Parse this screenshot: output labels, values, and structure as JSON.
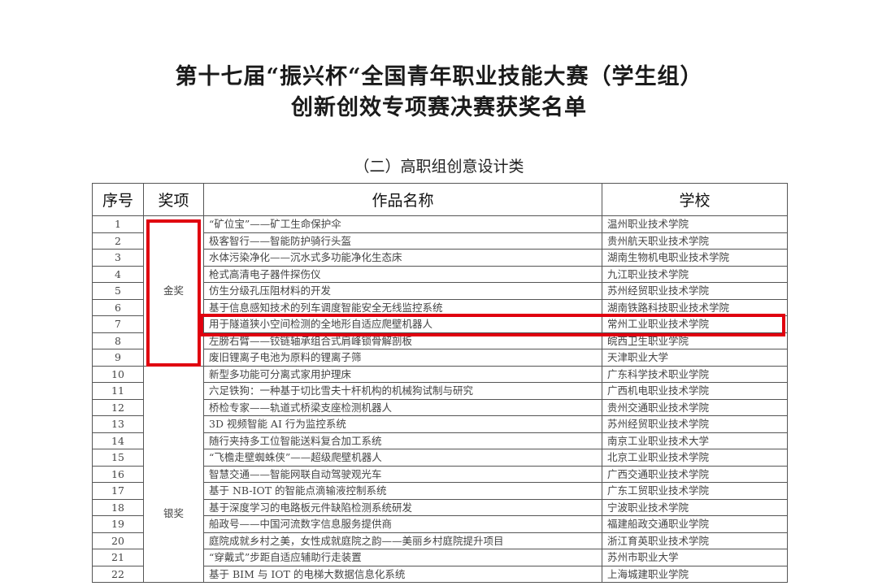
{
  "document": {
    "title_line1": "第十七届“振兴杯“全国青年职业技能大赛（学生组）",
    "title_line2": "创新创效专项赛决赛获奖名单",
    "section": "（二）高职组创意设计类"
  },
  "table": {
    "headers": [
      "序号",
      "奖项",
      "作品名称",
      "学校"
    ],
    "awards": {
      "gold": "金奖",
      "silver": "银奖"
    },
    "rows": [
      {
        "no": "1",
        "name": "“矿位宝”——矿工生命保护伞",
        "school": "温州职业技术学院"
      },
      {
        "no": "2",
        "name": "极客智行——智能防护骑行头盔",
        "school": "贵州航天职业技术学院"
      },
      {
        "no": "3",
        "name": "水体污染净化——沉水式多功能净化生态床",
        "school": "湖南生物机电职业技术学院"
      },
      {
        "no": "4",
        "name": "枪式高清电子器件探伤仪",
        "school": "九江职业技术学院"
      },
      {
        "no": "5",
        "name": "仿生分级孔压阻材料的开发",
        "school": "苏州经贸职业技术学院"
      },
      {
        "no": "6",
        "name": "基于信息感知技术的列车调度智能安全无线监控系统",
        "school": "湖南铁路科技职业技术学院"
      },
      {
        "no": "7",
        "name": "用于隧道狭小空间检测的全地形自适应爬壁机器人",
        "school": "常州工业职业技术学院"
      },
      {
        "no": "8",
        "name": "左膀右臂——铰链轴承组合式肩峰锁骨解剖板",
        "school": "皖西卫生职业学院"
      },
      {
        "no": "9",
        "name": "废旧锂离子电池为原料的锂离子筛",
        "school": "天津职业大学"
      },
      {
        "no": "10",
        "name": "新型多功能可分离式家用护理床",
        "school": "广东科学技术职业学院"
      },
      {
        "no": "11",
        "name": "六足铁狗：一种基于切比雪夫十杆机构的机械狗试制与研究",
        "school": "广西机电职业技术学院"
      },
      {
        "no": "12",
        "name": "桥检专家——轨道式桥梁支座检测机器人",
        "school": "贵州交通职业技术学院"
      },
      {
        "no": "13",
        "name": "3D 视频智能 AI 行为监控系统",
        "school": "苏州经贸职业技术学院"
      },
      {
        "no": "14",
        "name": "随行夹持多工位智能送料复合加工系统",
        "school": "南京工业职业技术大学"
      },
      {
        "no": "15",
        "name": "“飞檐走壁蜘蛛侠”——超级爬壁机器人",
        "school": "北京工业职业技术学院"
      },
      {
        "no": "16",
        "name": "智慧交通——智能网联自动驾驶观光车",
        "school": "广西交通职业技术学院"
      },
      {
        "no": "17",
        "name": "基于 NB-IOT 的智能点滴输液控制系统",
        "school": "广东工贸职业技术学院"
      },
      {
        "no": "18",
        "name": "基于深度学习的电路板元件缺陷检测系统研发",
        "school": "宁波职业技术学院"
      },
      {
        "no": "19",
        "name": "船政号——中国河流数字信息服务提供商",
        "school": "福建船政交通职业学院"
      },
      {
        "no": "20",
        "name": "庭院成就乡村之美，女性成就庭院之韵——美丽乡村庭院提升项目",
        "school": "浙江育英职业技术学院"
      },
      {
        "no": "21",
        "name": "“穿戴式”步距自适应辅助行走装置",
        "school": "苏州市职业大学"
      },
      {
        "no": "22",
        "name": "基于 BIM 与 IOT 的电梯大数据信息化系统",
        "school": "上海城建职业学院"
      }
    ]
  },
  "highlight_color": "#e0000f"
}
